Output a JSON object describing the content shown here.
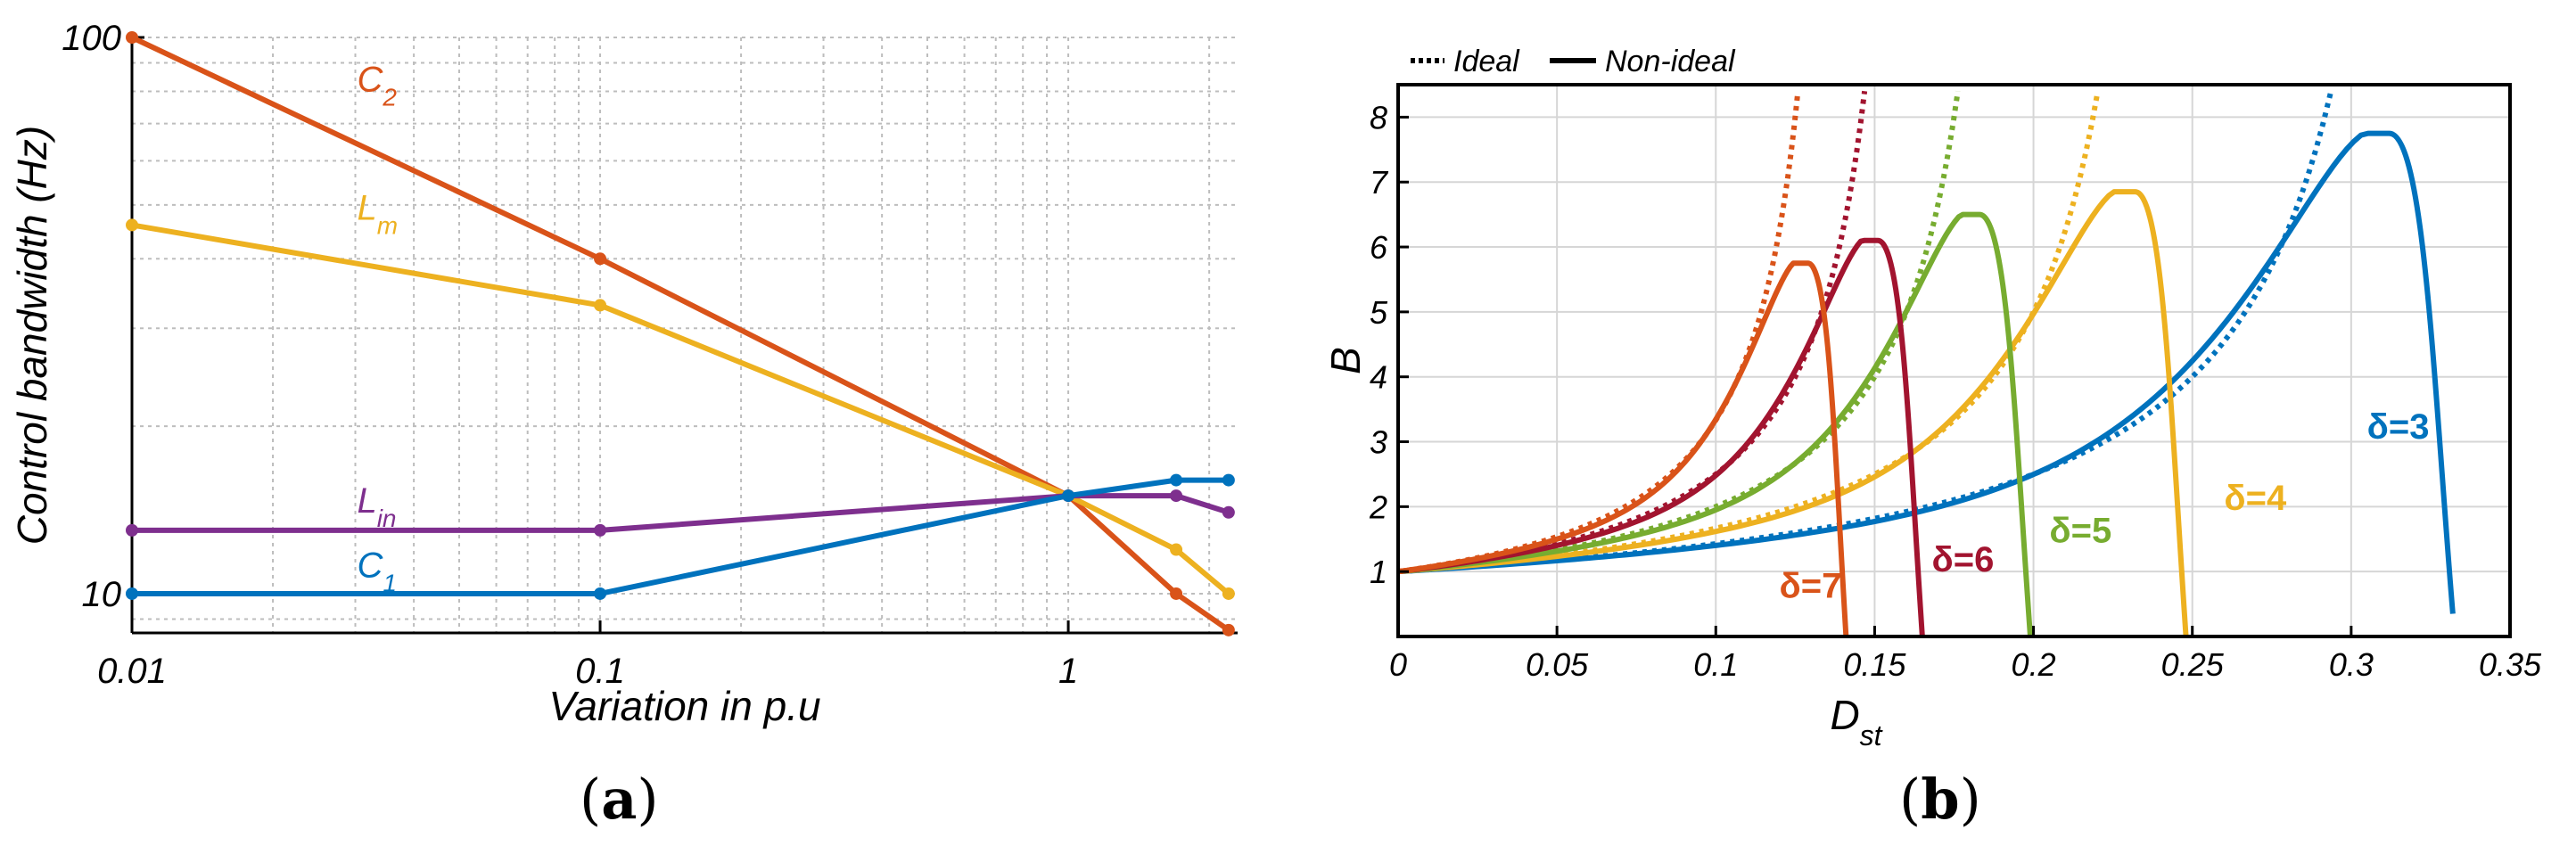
{
  "chart_data": [
    {
      "panel_label": "(a)",
      "caption_open": "(",
      "caption_letter": "a",
      "caption_close": ")",
      "type": "line",
      "xscale": "log",
      "yscale": "log",
      "xlabel": "Variation in p.u",
      "ylabel": "Control bandwidth (Hz)",
      "xlim": [
        0.01,
        2.3
      ],
      "ylim": [
        8.5,
        100
      ],
      "xticks": [
        {
          "value": 0.01,
          "label": "0.01"
        },
        {
          "value": 0.1,
          "label": "0.1"
        },
        {
          "value": 1,
          "label": "1"
        }
      ],
      "yticks": [
        {
          "value": 10,
          "label": "10"
        },
        {
          "value": 100,
          "label": "100"
        }
      ],
      "grid": true,
      "series": [
        {
          "name": "C",
          "sub": "2",
          "color": "#D95319",
          "x": [
            0.01,
            0.1,
            1,
            1.7,
            2.2
          ],
          "y": [
            100,
            40,
            15,
            10,
            8.6
          ],
          "label_at": [
            0.015,
            80
          ]
        },
        {
          "name": "L",
          "sub": "m",
          "color": "#EDB120",
          "x": [
            0.01,
            0.1,
            1,
            1.7,
            2.2
          ],
          "y": [
            46,
            33,
            15,
            12,
            10
          ],
          "label_at": [
            0.015,
            47
          ]
        },
        {
          "name": "L",
          "sub": "in",
          "color": "#7E2F8E",
          "x": [
            0.01,
            0.1,
            1,
            1.7,
            2.2
          ],
          "y": [
            13,
            13,
            15,
            15,
            14
          ],
          "label_at": [
            0.015,
            14.0
          ]
        },
        {
          "name": "C",
          "sub": "1",
          "color": "#0072BD",
          "x": [
            0.01,
            0.1,
            1,
            1.7,
            2.2
          ],
          "y": [
            10,
            10,
            15,
            16,
            16
          ],
          "label_at": [
            0.015,
            10.7
          ]
        }
      ]
    },
    {
      "panel_label": "(b)",
      "caption_open": "(",
      "caption_letter": "b",
      "caption_close": ")",
      "type": "line",
      "xlabel_main": "D",
      "xlabel_sub": "st",
      "ylabel": "B",
      "xlim": [
        0,
        0.35
      ],
      "ylim": [
        0,
        8.5
      ],
      "xticks": [
        {
          "value": 0,
          "label": "0"
        },
        {
          "value": 0.05,
          "label": "0.05"
        },
        {
          "value": 0.1,
          "label": "0.1"
        },
        {
          "value": 0.15,
          "label": "0.15"
        },
        {
          "value": 0.2,
          "label": "0.2"
        },
        {
          "value": 0.25,
          "label": "0.25"
        },
        {
          "value": 0.3,
          "label": "0.3"
        },
        {
          "value": 0.35,
          "label": "0.35"
        }
      ],
      "yticks": [
        {
          "value": 1,
          "label": "1"
        },
        {
          "value": 2,
          "label": "2"
        },
        {
          "value": 3,
          "label": "3"
        },
        {
          "value": 4,
          "label": "4"
        },
        {
          "value": 5,
          "label": "5"
        },
        {
          "value": 6,
          "label": "6"
        },
        {
          "value": 7,
          "label": "7"
        },
        {
          "value": 8,
          "label": "8"
        }
      ],
      "grid": true,
      "legend": {
        "position": "top-left-outside",
        "ideal": "Ideal",
        "nonideal": "Non-ideal"
      },
      "series": [
        {
          "name": "δ=3",
          "delta": 3,
          "color": "#0072BD",
          "peak_x": 0.312,
          "peak_B": 7.75,
          "end_x": 0.332,
          "end_B": 0.35,
          "ideal_end_B": 8.4,
          "label_at": [
            0.305,
            3.05
          ]
        },
        {
          "name": "δ=4",
          "delta": 4,
          "color": "#EDB120",
          "peak_x": 0.232,
          "peak_B": 6.85,
          "end_x": 0.248,
          "end_B": 0,
          "ideal_end_B": 8.4,
          "label_at": [
            0.26,
            1.95
          ]
        },
        {
          "name": "δ=5",
          "delta": 5,
          "color": "#77AC30",
          "peak_x": 0.183,
          "peak_B": 6.5,
          "end_x": 0.199,
          "end_B": 0,
          "ideal_end_B": 8.4,
          "label_at": [
            0.205,
            1.45
          ]
        },
        {
          "name": "δ=6",
          "delta": 6,
          "color": "#A2142F",
          "peak_x": 0.151,
          "peak_B": 6.1,
          "end_x": 0.165,
          "end_B": 0,
          "ideal_end_B": 8.4,
          "label_at": [
            0.168,
            1.0
          ]
        },
        {
          "name": "δ=7",
          "delta": 7,
          "color": "#D95319",
          "peak_x": 0.129,
          "peak_B": 5.75,
          "end_x": 0.141,
          "end_B": 0,
          "ideal_end_B": 8.4,
          "label_at": [
            0.12,
            0.6
          ]
        }
      ]
    }
  ]
}
